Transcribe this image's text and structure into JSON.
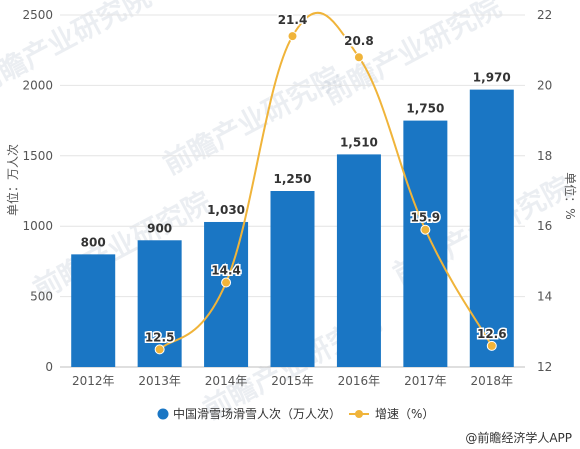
{
  "chart_data": {
    "type": "bar",
    "categories": [
      "2012年",
      "2013年",
      "2014年",
      "2015年",
      "2016年",
      "2017年",
      "2018年"
    ],
    "series": [
      {
        "name": "中国滑雪场滑雪人次（万人次）",
        "type": "bar",
        "axis": "left",
        "color": "#1a76c4",
        "values": [
          800,
          900,
          1030,
          1250,
          1510,
          1750,
          1970
        ],
        "labels": [
          "800",
          "900",
          "1,030",
          "1,250",
          "1,510",
          "1,750",
          "1,970"
        ]
      },
      {
        "name": "增速（%）",
        "type": "line",
        "axis": "right",
        "color": "#f0b43a",
        "values": [
          null,
          12.5,
          14.4,
          21.4,
          20.8,
          15.9,
          12.6
        ],
        "labels": [
          "",
          "12.5",
          "14.4",
          "21.4",
          "20.8",
          "15.9",
          "12.6"
        ]
      }
    ],
    "ylabel": "单位：万人次",
    "y2label": "单位：%",
    "ylim": [
      0,
      2500
    ],
    "y2lim": [
      12,
      22
    ],
    "yticks": [
      "0",
      "500",
      "1000",
      "1500",
      "2000",
      "2500"
    ],
    "y2ticks": [
      "12",
      "14",
      "16",
      "18",
      "20",
      "22"
    ],
    "grid": true,
    "legend": "bottom"
  },
  "watermark": "前瞻产业研究院",
  "credit": "@前瞻经济学人APP"
}
